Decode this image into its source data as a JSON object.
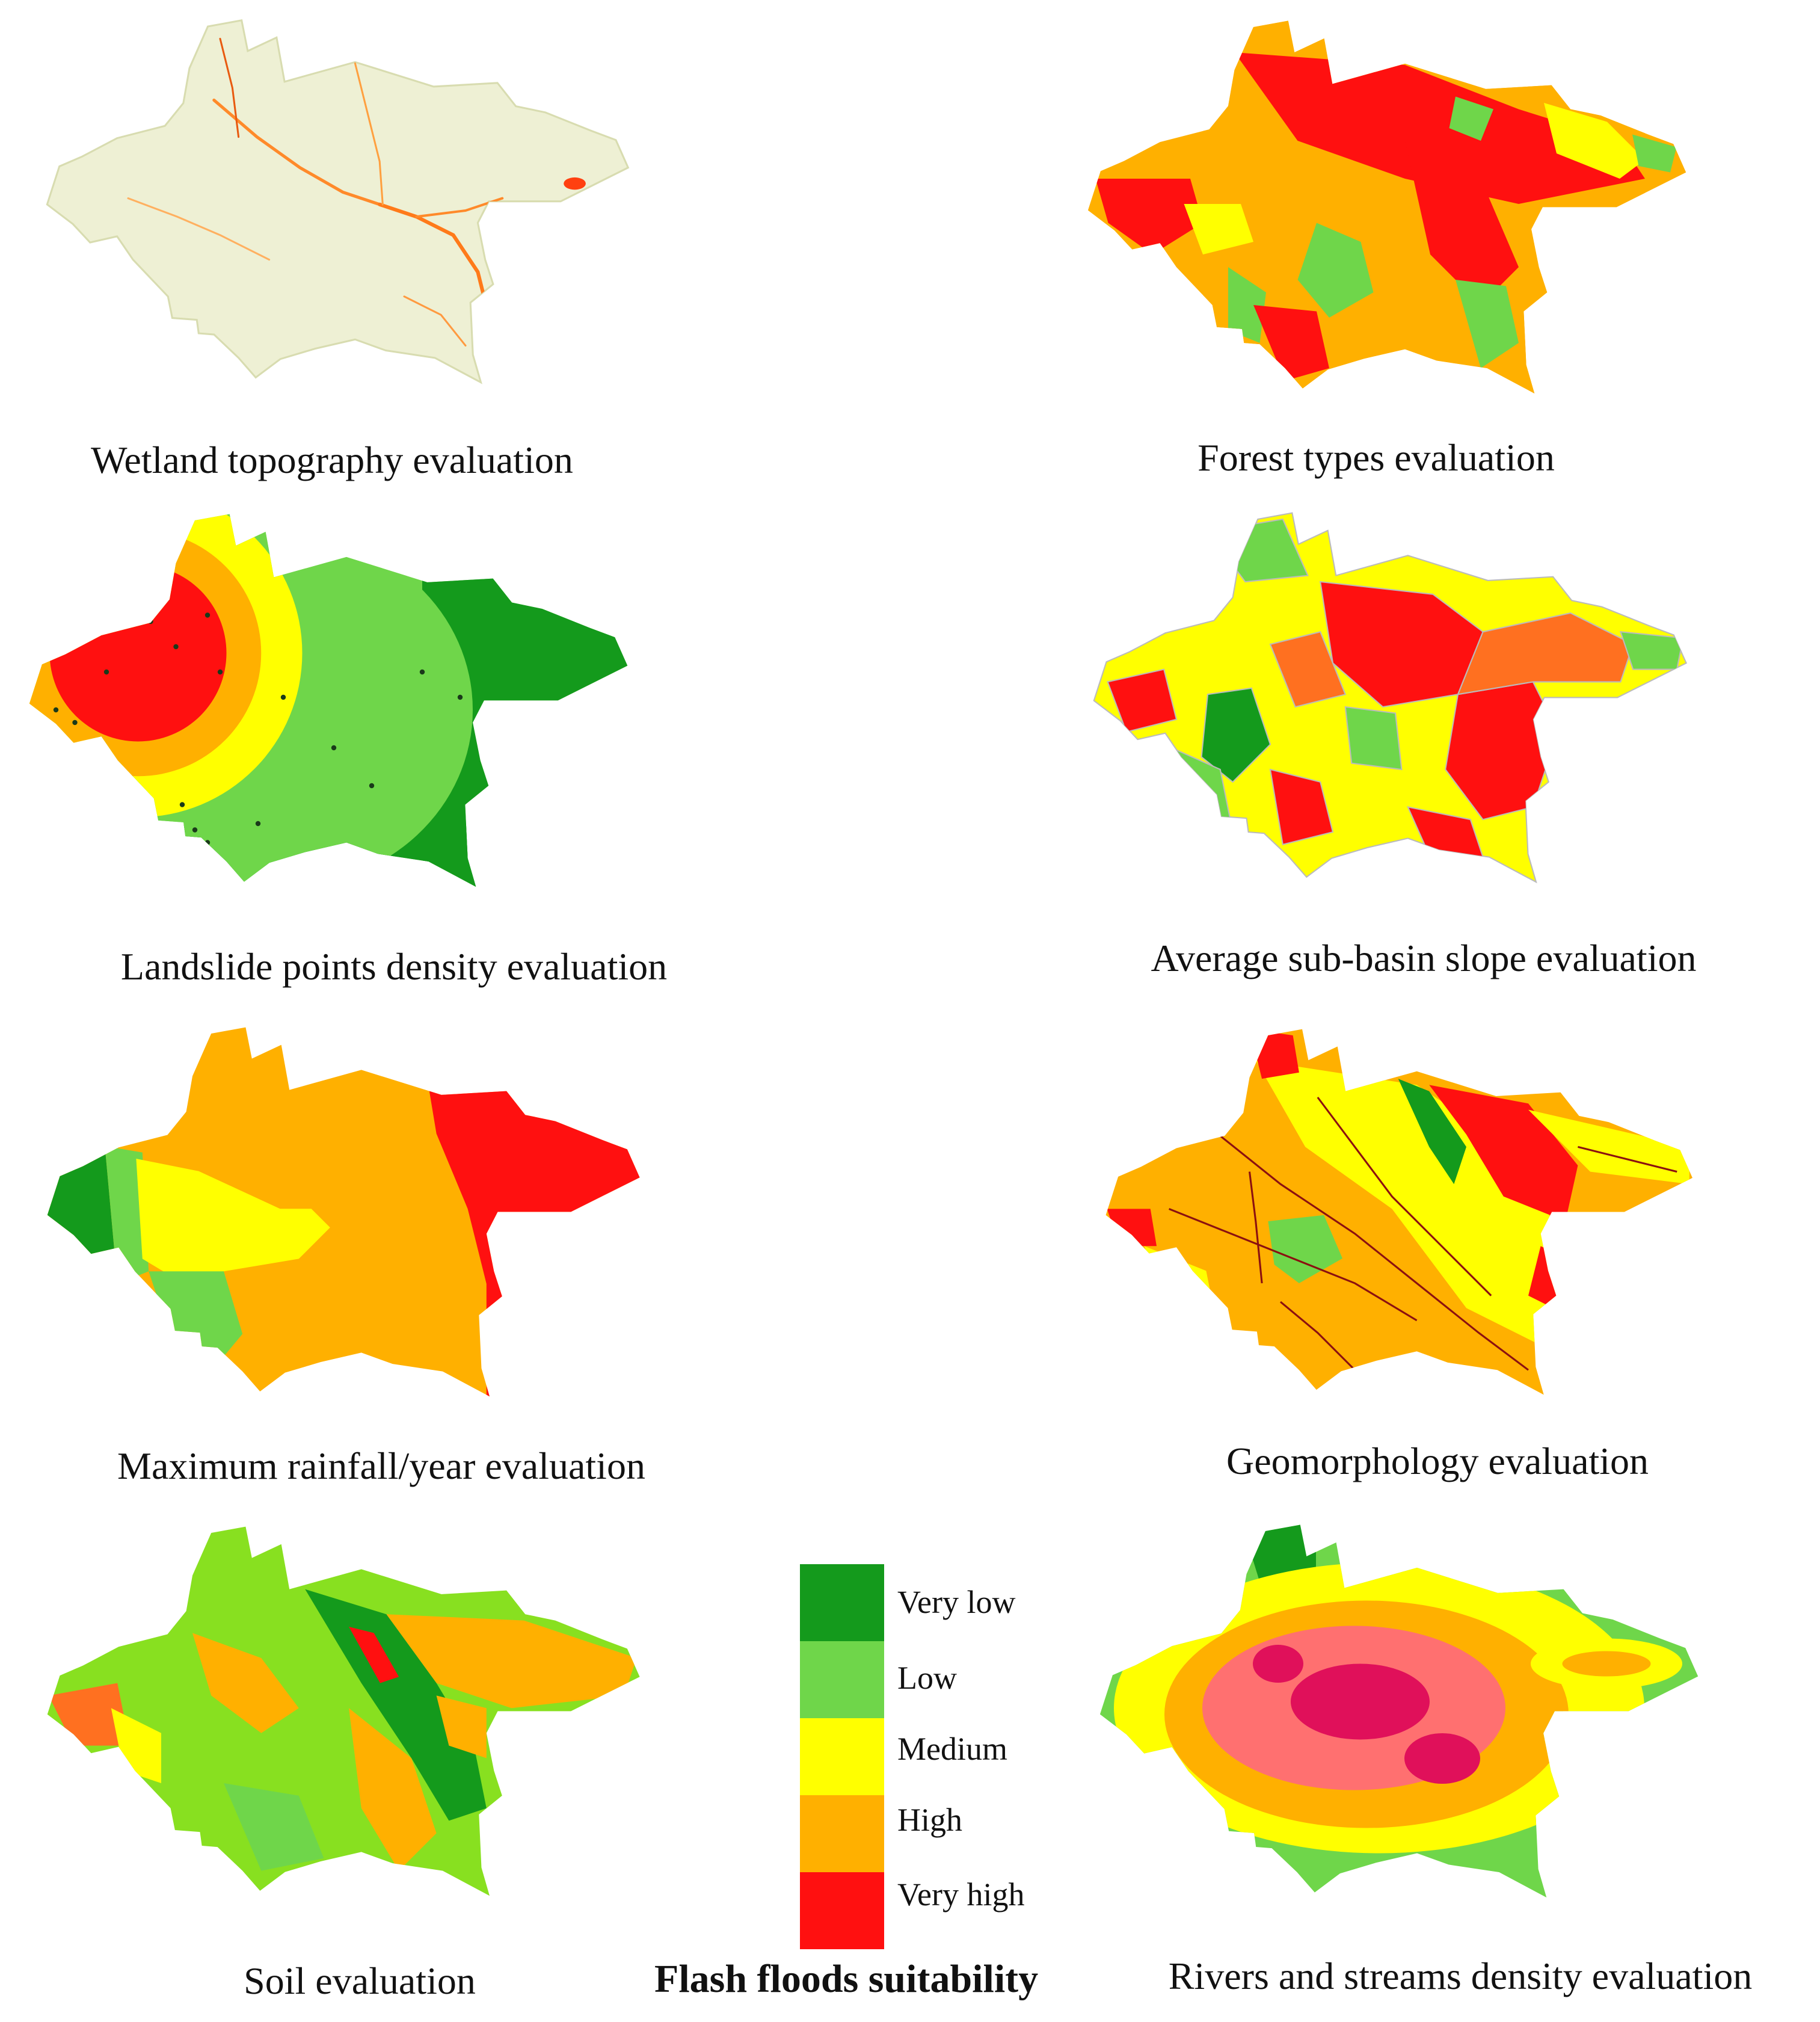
{
  "colors": {
    "very_low": "#149a1c",
    "low": "#6fd64a",
    "medium": "#ffff00",
    "high": "#ffb000",
    "very_high": "#ff1010",
    "pale": "#eef0d4",
    "bright_green": "#88e020",
    "dark_river": "#8b1010",
    "pink": "#ff7070",
    "magenta": "#e0105a"
  },
  "maps": [
    {
      "id": "wetland",
      "caption": "Wetland topography evaluation"
    },
    {
      "id": "forest",
      "caption": "Forest types evaluation"
    },
    {
      "id": "landslide",
      "caption": "Landslide points density evaluation"
    },
    {
      "id": "slope",
      "caption": "Average sub-basin slope evaluation"
    },
    {
      "id": "rainfall",
      "caption": "Maximum rainfall/year evaluation"
    },
    {
      "id": "geomorph",
      "caption": "Geomorphology evaluation"
    },
    {
      "id": "soil",
      "caption": "Soil evaluation"
    },
    {
      "id": "rivers",
      "caption": "Rivers and streams density evaluation"
    }
  ],
  "legend": {
    "title": "Flash floods suitability",
    "items": [
      {
        "label": "Very low",
        "color": "#149a1c"
      },
      {
        "label": "Low",
        "color": "#6fd64a"
      },
      {
        "label": "Medium",
        "color": "#ffff00"
      },
      {
        "label": "High",
        "color": "#ffb000"
      },
      {
        "label": "Very high",
        "color": "#ff1010"
      }
    ]
  }
}
